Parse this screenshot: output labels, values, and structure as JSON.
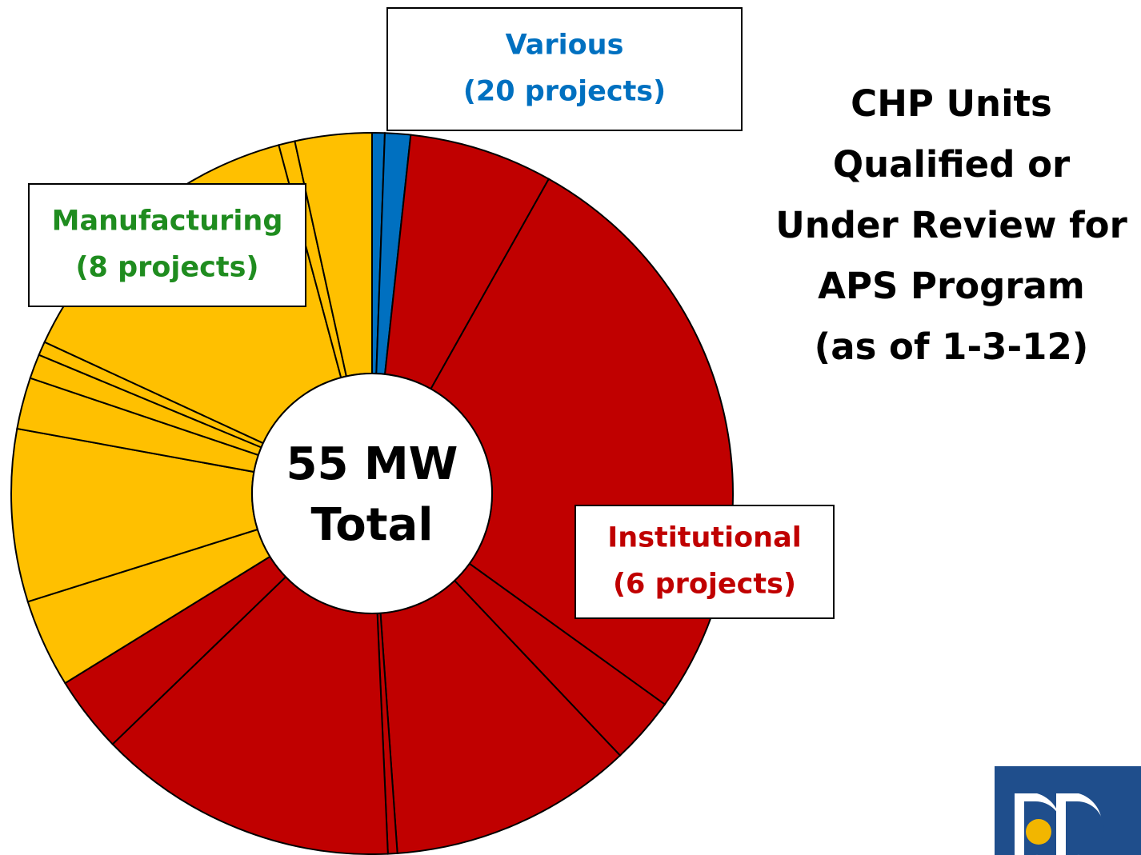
{
  "chart_data": {
    "type": "pie",
    "title": [
      "CHP Units",
      "Qualified or",
      "Under Review for",
      "APS Program",
      "(as of 1-3-12)"
    ],
    "center_label": [
      "55 MW",
      "Total"
    ],
    "values": [
      0.31,
      0.63,
      3.54,
      14.74,
      1.65,
      6.02,
      0.23,
      7.41,
      1.88,
      2.18,
      4.25,
      1.27,
      0.6,
      0.34,
      7.67,
      0.4,
      1.89
    ],
    "colors": [
      "#0070c0",
      "#0070c0",
      "#c00000",
      "#c00000",
      "#c00000",
      "#c00000",
      "#c00000",
      "#c00000",
      "#c00000",
      "#ffc000",
      "#ffc000",
      "#ffc000",
      "#ffc000",
      "#ffc000",
      "#ffc000",
      "#ffc000",
      "#ffc000"
    ],
    "annotations": [
      {
        "lines": [
          "Various",
          "(20 projects)"
        ],
        "color": "#0070c0"
      },
      {
        "lines": [
          "Manufacturing",
          "(8 projects)"
        ],
        "color": "#1f8c1f"
      },
      {
        "lines": [
          "Institutional",
          "(6 projects)"
        ],
        "color": "#c00000"
      }
    ]
  }
}
